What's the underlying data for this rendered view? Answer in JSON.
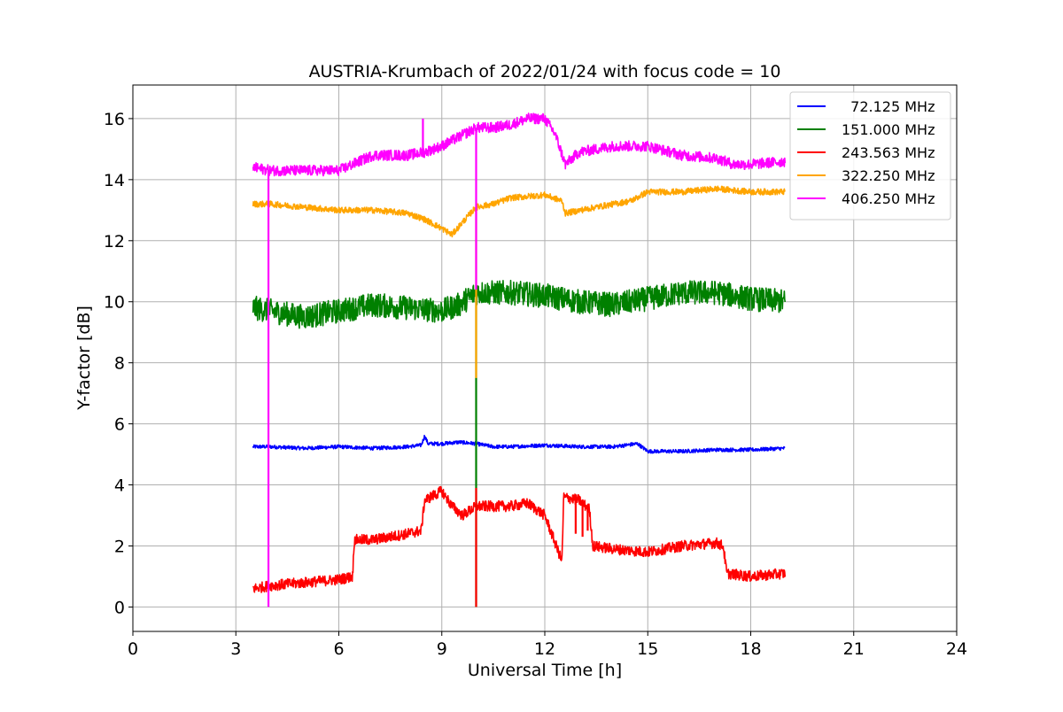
{
  "chart_data": {
    "type": "line",
    "title": "AUSTRIA-Krumbach of 2022/01/24 with focus code = 10",
    "xlabel": "Universal Time [h]",
    "ylabel": "Y-factor [dB]",
    "xlim": [
      0,
      24
    ],
    "ylim": [
      -0.8,
      17.1
    ],
    "xticks": [
      0,
      3,
      6,
      9,
      12,
      15,
      18,
      21,
      24
    ],
    "yticks": [
      0,
      2,
      4,
      6,
      8,
      10,
      12,
      14,
      16
    ],
    "grid": true,
    "legend_position": "top-right",
    "series": [
      {
        "name": "  72.125 MHz",
        "color": "#0000ff",
        "x": [
          3.5,
          4.0,
          5.0,
          6.0,
          7.0,
          8.0,
          8.4,
          8.5,
          8.6,
          9.0,
          9.5,
          10.0,
          10.5,
          11.0,
          12.0,
          13.0,
          14.0,
          14.7,
          15.0,
          16.0,
          17.0,
          18.0,
          19.0
        ],
        "y": [
          5.25,
          5.25,
          5.2,
          5.25,
          5.2,
          5.25,
          5.3,
          5.6,
          5.35,
          5.35,
          5.4,
          5.35,
          5.25,
          5.25,
          5.3,
          5.25,
          5.25,
          5.35,
          5.1,
          5.1,
          5.15,
          5.15,
          5.2
        ],
        "noise": 0.12
      },
      {
        "name": "151.000 MHz",
        "color": "#008000",
        "x": [
          3.5,
          4.0,
          5.0,
          6.0,
          7.0,
          8.0,
          9.0,
          9.5,
          10.0,
          11.0,
          12.0,
          13.0,
          14.0,
          15.0,
          16.0,
          17.0,
          18.0,
          19.0
        ],
        "y": [
          9.8,
          9.7,
          9.5,
          9.7,
          9.9,
          9.8,
          9.7,
          9.9,
          10.3,
          10.3,
          10.2,
          10.0,
          9.9,
          10.1,
          10.3,
          10.3,
          10.1,
          10.0
        ],
        "noise": 0.8
      },
      {
        "name": "243.563 MHz",
        "color": "#ff0000",
        "x": [
          3.5,
          4.0,
          5.0,
          6.0,
          6.4,
          6.45,
          7.0,
          8.0,
          8.4,
          8.5,
          9.0,
          9.3,
          9.6,
          10.0,
          11.0,
          11.5,
          12.0,
          12.5,
          12.55,
          13.0,
          13.3,
          13.4,
          14.0,
          15.0,
          16.0,
          17.0,
          17.2,
          17.3,
          18.0,
          19.0
        ],
        "y": [
          0.6,
          0.7,
          0.8,
          0.9,
          1.0,
          2.2,
          2.2,
          2.4,
          2.5,
          3.5,
          3.8,
          3.3,
          3.0,
          3.3,
          3.3,
          3.4,
          3.0,
          1.5,
          3.6,
          3.5,
          3.2,
          2.0,
          1.9,
          1.8,
          2.0,
          2.1,
          2.0,
          1.1,
          1.0,
          1.1
        ],
        "noise": 0.35
      },
      {
        "name": "322.250 MHz",
        "color": "#ffa500",
        "x": [
          3.5,
          4.0,
          5.0,
          6.0,
          7.0,
          8.0,
          8.5,
          9.0,
          9.3,
          9.6,
          10.0,
          10.5,
          11.0,
          12.0,
          12.5,
          12.6,
          13.5,
          14.0,
          14.5,
          15.0,
          16.0,
          17.0,
          18.0,
          19.0
        ],
        "y": [
          13.2,
          13.2,
          13.1,
          13.0,
          13.0,
          12.9,
          12.7,
          12.4,
          12.2,
          12.6,
          13.1,
          13.2,
          13.4,
          13.5,
          13.3,
          12.9,
          13.1,
          13.2,
          13.3,
          13.6,
          13.6,
          13.7,
          13.6,
          13.6
        ],
        "noise": 0.2
      },
      {
        "name": "406.250 MHz",
        "color": "#ff00ff",
        "x": [
          3.5,
          4.0,
          5.0,
          6.0,
          6.4,
          7.0,
          8.0,
          8.5,
          9.0,
          9.5,
          10.0,
          10.5,
          11.0,
          11.5,
          12.0,
          12.3,
          12.6,
          13.0,
          14.0,
          15.0,
          16.0,
          17.0,
          17.5,
          18.0,
          19.0
        ],
        "y": [
          14.4,
          14.3,
          14.3,
          14.3,
          14.5,
          14.8,
          14.8,
          14.9,
          15.1,
          15.4,
          15.7,
          15.7,
          15.8,
          16.0,
          16.0,
          15.5,
          14.5,
          14.9,
          15.1,
          15.1,
          14.8,
          14.7,
          14.5,
          14.5,
          14.6
        ],
        "noise": 0.35
      }
    ],
    "spikes": [
      {
        "series_index": 4,
        "x": 3.95,
        "y_from": 14.3,
        "y_to": 0.0
      },
      {
        "series_index": 4,
        "x": 8.45,
        "y_from": 14.9,
        "y_to": 16.0
      },
      {
        "series_index": 1,
        "x": 10.0,
        "y_from": 10.3,
        "y_to": 0.0
      },
      {
        "series_index": 3,
        "x": 10.0,
        "y_from": 13.1,
        "y_to": 7.5
      },
      {
        "series_index": 4,
        "x": 10.0,
        "y_from": 15.7,
        "y_to": 10.4
      },
      {
        "series_index": 2,
        "x": 10.0,
        "y_from": 3.3,
        "y_to": 0.0
      },
      {
        "series_index": 2,
        "x": 10.0,
        "y_from": 3.3,
        "y_to": 3.9
      },
      {
        "series_index": 2,
        "x": 12.9,
        "y_from": 3.6,
        "y_to": 2.4
      },
      {
        "series_index": 2,
        "x": 13.1,
        "y_from": 3.5,
        "y_to": 2.3
      },
      {
        "series_index": 2,
        "x": 13.25,
        "y_from": 3.3,
        "y_to": 2.5
      }
    ]
  }
}
